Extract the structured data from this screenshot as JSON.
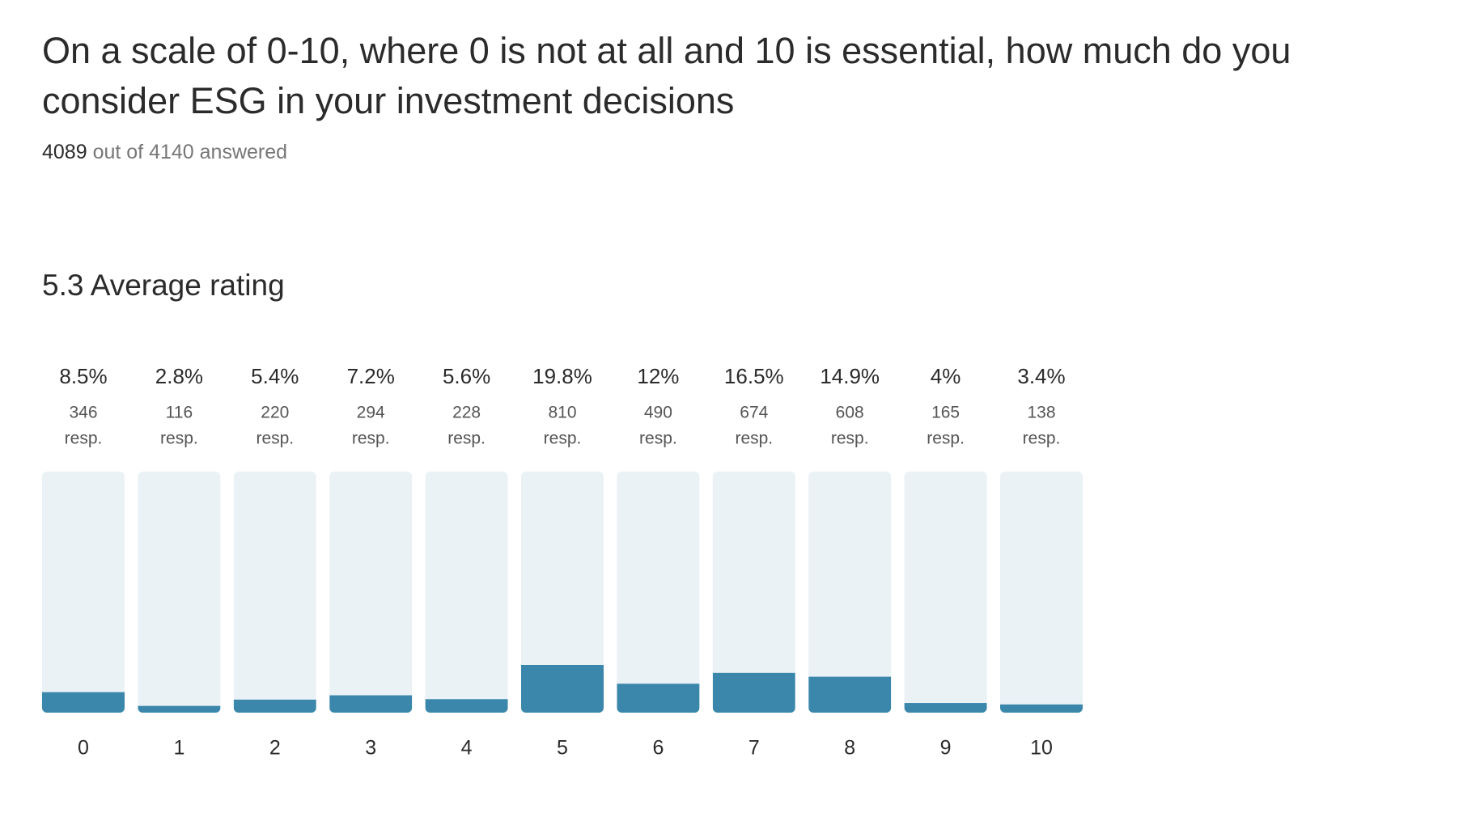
{
  "chart_data": {
    "type": "bar",
    "title": "On a scale of 0-10, where 0 is not at all and 10 is essential, how much do you consider ESG in your investment decisions",
    "answered_count": 4089,
    "answered_label": "out of 4140 answered",
    "average": 5.3,
    "average_label": "Average rating",
    "categories": [
      "0",
      "1",
      "2",
      "3",
      "4",
      "5",
      "6",
      "7",
      "8",
      "9",
      "10"
    ],
    "values": [
      8.5,
      2.8,
      5.4,
      7.2,
      5.6,
      19.8,
      12,
      16.5,
      14.9,
      4,
      3.4
    ],
    "value_labels": [
      "8.5%",
      "2.8%",
      "5.4%",
      "7.2%",
      "5.6%",
      "19.8%",
      "12%",
      "16.5%",
      "14.9%",
      "4%",
      "3.4%"
    ],
    "responses": [
      346,
      116,
      220,
      294,
      228,
      810,
      490,
      674,
      608,
      165,
      138
    ],
    "responses_unit": "resp.",
    "ylim": [
      0,
      100
    ],
    "color": "#3a87ab",
    "track_color": "#eaf2f6"
  }
}
